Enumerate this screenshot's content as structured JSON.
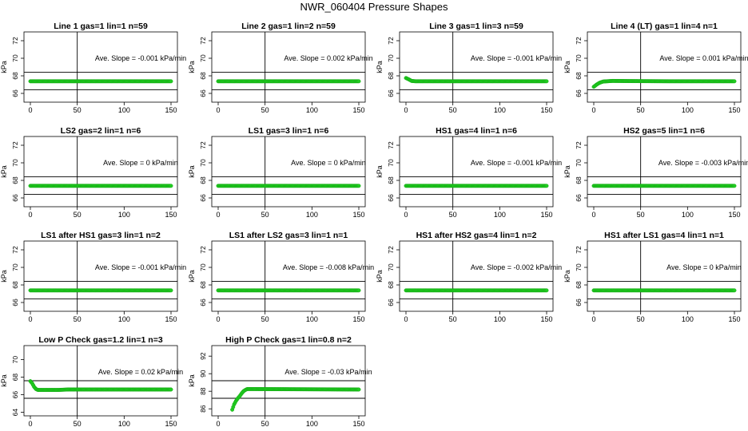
{
  "title": "NWR_060404  Pressure Shapes",
  "colors": {
    "series": "#22cc22",
    "series_edge": "#11aa11",
    "axis": "#000000"
  },
  "chart_data": [
    {
      "type": "scatter",
      "title": "Line 1 gas=1 lin=1 n=59",
      "ylabel": "kPa",
      "annotation": "Ave. Slope =  -0.001  kPa/min",
      "xlim": [
        0,
        150
      ],
      "ylim": [
        65,
        73
      ],
      "xticks": [
        0,
        50,
        100,
        150
      ],
      "yticks": [
        66,
        68,
        70,
        72
      ],
      "ref_lines": [
        66.4,
        68.4
      ],
      "vline": 50,
      "trace": [
        [
          0,
          67.38
        ],
        [
          150,
          67.38
        ]
      ]
    },
    {
      "type": "scatter",
      "title": "Line 2 gas=1 lin=2 n=59",
      "ylabel": "kPa",
      "annotation": "Ave. Slope =  0.002  kPa/min",
      "xlim": [
        0,
        150
      ],
      "ylim": [
        65,
        73
      ],
      "xticks": [
        0,
        50,
        100,
        150
      ],
      "yticks": [
        66,
        68,
        70,
        72
      ],
      "ref_lines": [
        66.4,
        68.4
      ],
      "vline": 50,
      "trace": [
        [
          0,
          67.38
        ],
        [
          150,
          67.38
        ]
      ]
    },
    {
      "type": "scatter",
      "title": "Line 3 gas=1 lin=3 n=59",
      "ylabel": "kPa",
      "annotation": "Ave. Slope =  -0.001  kPa/min",
      "xlim": [
        0,
        150
      ],
      "ylim": [
        65,
        73
      ],
      "xticks": [
        0,
        50,
        100,
        150
      ],
      "yticks": [
        66,
        68,
        70,
        72
      ],
      "ref_lines": [
        66.4,
        68.4
      ],
      "vline": 50,
      "trace": [
        [
          0,
          67.75
        ],
        [
          3,
          67.6
        ],
        [
          6,
          67.42
        ],
        [
          10,
          67.38
        ],
        [
          150,
          67.38
        ]
      ]
    },
    {
      "type": "scatter",
      "title": "Line 4 (LT) gas=1 lin=4 n=1",
      "ylabel": "kPa",
      "annotation": "Ave. Slope =  0.001  kPa/min",
      "xlim": [
        0,
        150
      ],
      "ylim": [
        65,
        73
      ],
      "xticks": [
        0,
        50,
        100,
        150
      ],
      "yticks": [
        66,
        68,
        70,
        72
      ],
      "ref_lines": [
        66.4,
        68.4
      ],
      "vline": 50,
      "trace": [
        [
          0,
          66.75
        ],
        [
          3,
          67.0
        ],
        [
          6,
          67.2
        ],
        [
          10,
          67.35
        ],
        [
          20,
          67.42
        ],
        [
          40,
          67.4
        ],
        [
          80,
          67.38
        ],
        [
          150,
          67.38
        ]
      ]
    },
    {
      "type": "scatter",
      "title": "LS2 gas=2 lin=1 n=6",
      "ylabel": "kPa",
      "annotation": "Ave. Slope =  0  kPa/min",
      "xlim": [
        0,
        150
      ],
      "ylim": [
        65,
        73
      ],
      "xticks": [
        0,
        50,
        100,
        150
      ],
      "yticks": [
        66,
        68,
        70,
        72
      ],
      "ref_lines": [
        66.4,
        68.4
      ],
      "vline": 50,
      "trace": [
        [
          0,
          67.38
        ],
        [
          150,
          67.38
        ]
      ]
    },
    {
      "type": "scatter",
      "title": "LS1 gas=3 lin=1 n=6",
      "ylabel": "kPa",
      "annotation": "Ave. Slope =  0  kPa/min",
      "xlim": [
        0,
        150
      ],
      "ylim": [
        65,
        73
      ],
      "xticks": [
        0,
        50,
        100,
        150
      ],
      "yticks": [
        66,
        68,
        70,
        72
      ],
      "ref_lines": [
        66.4,
        68.4
      ],
      "vline": 50,
      "trace": [
        [
          0,
          67.38
        ],
        [
          150,
          67.38
        ]
      ]
    },
    {
      "type": "scatter",
      "title": "HS1 gas=4 lin=1 n=6",
      "ylabel": "kPa",
      "annotation": "Ave. Slope =  -0.001  kPa/min",
      "xlim": [
        0,
        150
      ],
      "ylim": [
        65,
        73
      ],
      "xticks": [
        0,
        50,
        100,
        150
      ],
      "yticks": [
        66,
        68,
        70,
        72
      ],
      "ref_lines": [
        66.4,
        68.4
      ],
      "vline": 50,
      "trace": [
        [
          0,
          67.38
        ],
        [
          150,
          67.38
        ]
      ]
    },
    {
      "type": "scatter",
      "title": "HS2 gas=5 lin=1 n=6",
      "ylabel": "kPa",
      "annotation": "Ave. Slope =  -0.003  kPa/min",
      "xlim": [
        0,
        150
      ],
      "ylim": [
        65,
        73
      ],
      "xticks": [
        0,
        50,
        100,
        150
      ],
      "yticks": [
        66,
        68,
        70,
        72
      ],
      "ref_lines": [
        66.4,
        68.4
      ],
      "vline": 50,
      "trace": [
        [
          0,
          67.38
        ],
        [
          150,
          67.38
        ]
      ]
    },
    {
      "type": "scatter",
      "title": "LS1 after HS1 gas=3 lin=1 n=2",
      "ylabel": "kPa",
      "annotation": "Ave. Slope =  -0.001  kPa/min",
      "xlim": [
        0,
        150
      ],
      "ylim": [
        65,
        73
      ],
      "xticks": [
        0,
        50,
        100,
        150
      ],
      "yticks": [
        66,
        68,
        70,
        72
      ],
      "ref_lines": [
        66.4,
        68.4
      ],
      "vline": 50,
      "trace": [
        [
          0,
          67.38
        ],
        [
          150,
          67.38
        ]
      ]
    },
    {
      "type": "scatter",
      "title": "LS1 after LS2 gas=3 lin=1 n=1",
      "ylabel": "kPa",
      "annotation": "Ave. Slope =  -0.008  kPa/min",
      "xlim": [
        0,
        150
      ],
      "ylim": [
        65,
        73
      ],
      "xticks": [
        0,
        50,
        100,
        150
      ],
      "yticks": [
        66,
        68,
        70,
        72
      ],
      "ref_lines": [
        66.4,
        68.4
      ],
      "vline": 50,
      "trace": [
        [
          0,
          67.38
        ],
        [
          150,
          67.38
        ]
      ]
    },
    {
      "type": "scatter",
      "title": "HS1 after HS2 gas=4 lin=1 n=2",
      "ylabel": "kPa",
      "annotation": "Ave. Slope =  -0.002  kPa/min",
      "xlim": [
        0,
        150
      ],
      "ylim": [
        65,
        73
      ],
      "xticks": [
        0,
        50,
        100,
        150
      ],
      "yticks": [
        66,
        68,
        70,
        72
      ],
      "ref_lines": [
        66.4,
        68.4
      ],
      "vline": 50,
      "trace": [
        [
          0,
          67.38
        ],
        [
          150,
          67.38
        ]
      ]
    },
    {
      "type": "scatter",
      "title": "HS1 after LS1 gas=4 lin=1 n=1",
      "ylabel": "kPa",
      "annotation": "Ave. Slope =  0  kPa/min",
      "xlim": [
        0,
        150
      ],
      "ylim": [
        65,
        73
      ],
      "xticks": [
        0,
        50,
        100,
        150
      ],
      "yticks": [
        66,
        68,
        70,
        72
      ],
      "ref_lines": [
        66.4,
        68.4
      ],
      "vline": 50,
      "trace": [
        [
          0,
          67.38
        ],
        [
          150,
          67.38
        ]
      ]
    },
    {
      "type": "scatter",
      "title": "Low P Check gas=1.2 lin=1 n=3",
      "ylabel": "kPa",
      "annotation": "Ave. Slope =  0.02  kPa/min",
      "xlim": [
        0,
        150
      ],
      "ylim": [
        63.6,
        71.6
      ],
      "xticks": [
        0,
        50,
        100,
        150
      ],
      "yticks": [
        64,
        66,
        68,
        70
      ],
      "ref_lines": [
        65.6,
        67.6
      ],
      "vline": 50,
      "trace": [
        [
          0,
          67.55
        ],
        [
          2,
          67.3
        ],
        [
          4,
          66.9
        ],
        [
          6,
          66.65
        ],
        [
          8,
          66.55
        ],
        [
          30,
          66.55
        ],
        [
          40,
          66.6
        ],
        [
          150,
          66.6
        ]
      ]
    },
    {
      "type": "scatter",
      "title": "High P Check gas=1 lin=0.8 n=2",
      "ylabel": "kPa",
      "annotation": "Ave. Slope =  -0.03  kPa/min",
      "xlim": [
        0,
        150
      ],
      "ylim": [
        85.2,
        93.2
      ],
      "xticks": [
        0,
        50,
        100,
        150
      ],
      "yticks": [
        86,
        88,
        90,
        92
      ],
      "ref_lines": [
        87.2,
        89.2
      ],
      "vline": 50,
      "trace": [
        [
          15,
          85.9
        ],
        [
          17,
          86.5
        ],
        [
          19,
          86.9
        ],
        [
          21,
          87.2
        ],
        [
          23,
          87.45
        ],
        [
          25,
          87.75
        ],
        [
          27,
          88.0
        ],
        [
          29,
          88.15
        ],
        [
          31,
          88.25
        ],
        [
          35,
          88.25
        ],
        [
          150,
          88.2
        ]
      ]
    }
  ]
}
